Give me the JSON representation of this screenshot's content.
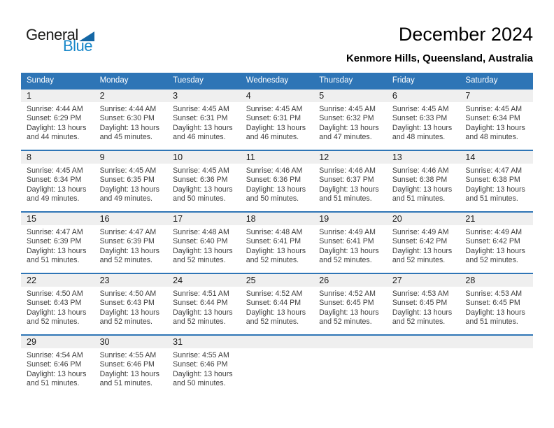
{
  "logo": {
    "part1": "General",
    "part2": "Blue",
    "triangle_color": "#1467a5",
    "blue_text_color": "#1787c9"
  },
  "header": {
    "title": "December 2024",
    "subtitle": "Kenmore Hills, Queensland, Australia"
  },
  "colors": {
    "weekday_header_bg": "#2e75b6",
    "week_divider": "#2e75b6",
    "day_number_strip_bg": "#efefef",
    "detail_text": "#3d3d3d"
  },
  "weekday_headers": [
    "Sunday",
    "Monday",
    "Tuesday",
    "Wednesday",
    "Thursday",
    "Friday",
    "Saturday"
  ],
  "weeks": [
    [
      {
        "day": "1",
        "sunrise": "Sunrise: 4:44 AM",
        "sunset": "Sunset: 6:29 PM",
        "daylight1": "Daylight: 13 hours",
        "daylight2": "and 44 minutes."
      },
      {
        "day": "2",
        "sunrise": "Sunrise: 4:44 AM",
        "sunset": "Sunset: 6:30 PM",
        "daylight1": "Daylight: 13 hours",
        "daylight2": "and 45 minutes."
      },
      {
        "day": "3",
        "sunrise": "Sunrise: 4:45 AM",
        "sunset": "Sunset: 6:31 PM",
        "daylight1": "Daylight: 13 hours",
        "daylight2": "and 46 minutes."
      },
      {
        "day": "4",
        "sunrise": "Sunrise: 4:45 AM",
        "sunset": "Sunset: 6:31 PM",
        "daylight1": "Daylight: 13 hours",
        "daylight2": "and 46 minutes."
      },
      {
        "day": "5",
        "sunrise": "Sunrise: 4:45 AM",
        "sunset": "Sunset: 6:32 PM",
        "daylight1": "Daylight: 13 hours",
        "daylight2": "and 47 minutes."
      },
      {
        "day": "6",
        "sunrise": "Sunrise: 4:45 AM",
        "sunset": "Sunset: 6:33 PM",
        "daylight1": "Daylight: 13 hours",
        "daylight2": "and 48 minutes."
      },
      {
        "day": "7",
        "sunrise": "Sunrise: 4:45 AM",
        "sunset": "Sunset: 6:34 PM",
        "daylight1": "Daylight: 13 hours",
        "daylight2": "and 48 minutes."
      }
    ],
    [
      {
        "day": "8",
        "sunrise": "Sunrise: 4:45 AM",
        "sunset": "Sunset: 6:34 PM",
        "daylight1": "Daylight: 13 hours",
        "daylight2": "and 49 minutes."
      },
      {
        "day": "9",
        "sunrise": "Sunrise: 4:45 AM",
        "sunset": "Sunset: 6:35 PM",
        "daylight1": "Daylight: 13 hours",
        "daylight2": "and 49 minutes."
      },
      {
        "day": "10",
        "sunrise": "Sunrise: 4:45 AM",
        "sunset": "Sunset: 6:36 PM",
        "daylight1": "Daylight: 13 hours",
        "daylight2": "and 50 minutes."
      },
      {
        "day": "11",
        "sunrise": "Sunrise: 4:46 AM",
        "sunset": "Sunset: 6:36 PM",
        "daylight1": "Daylight: 13 hours",
        "daylight2": "and 50 minutes."
      },
      {
        "day": "12",
        "sunrise": "Sunrise: 4:46 AM",
        "sunset": "Sunset: 6:37 PM",
        "daylight1": "Daylight: 13 hours",
        "daylight2": "and 51 minutes."
      },
      {
        "day": "13",
        "sunrise": "Sunrise: 4:46 AM",
        "sunset": "Sunset: 6:38 PM",
        "daylight1": "Daylight: 13 hours",
        "daylight2": "and 51 minutes."
      },
      {
        "day": "14",
        "sunrise": "Sunrise: 4:47 AM",
        "sunset": "Sunset: 6:38 PM",
        "daylight1": "Daylight: 13 hours",
        "daylight2": "and 51 minutes."
      }
    ],
    [
      {
        "day": "15",
        "sunrise": "Sunrise: 4:47 AM",
        "sunset": "Sunset: 6:39 PM",
        "daylight1": "Daylight: 13 hours",
        "daylight2": "and 51 minutes."
      },
      {
        "day": "16",
        "sunrise": "Sunrise: 4:47 AM",
        "sunset": "Sunset: 6:39 PM",
        "daylight1": "Daylight: 13 hours",
        "daylight2": "and 52 minutes."
      },
      {
        "day": "17",
        "sunrise": "Sunrise: 4:48 AM",
        "sunset": "Sunset: 6:40 PM",
        "daylight1": "Daylight: 13 hours",
        "daylight2": "and 52 minutes."
      },
      {
        "day": "18",
        "sunrise": "Sunrise: 4:48 AM",
        "sunset": "Sunset: 6:41 PM",
        "daylight1": "Daylight: 13 hours",
        "daylight2": "and 52 minutes."
      },
      {
        "day": "19",
        "sunrise": "Sunrise: 4:49 AM",
        "sunset": "Sunset: 6:41 PM",
        "daylight1": "Daylight: 13 hours",
        "daylight2": "and 52 minutes."
      },
      {
        "day": "20",
        "sunrise": "Sunrise: 4:49 AM",
        "sunset": "Sunset: 6:42 PM",
        "daylight1": "Daylight: 13 hours",
        "daylight2": "and 52 minutes."
      },
      {
        "day": "21",
        "sunrise": "Sunrise: 4:49 AM",
        "sunset": "Sunset: 6:42 PM",
        "daylight1": "Daylight: 13 hours",
        "daylight2": "and 52 minutes."
      }
    ],
    [
      {
        "day": "22",
        "sunrise": "Sunrise: 4:50 AM",
        "sunset": "Sunset: 6:43 PM",
        "daylight1": "Daylight: 13 hours",
        "daylight2": "and 52 minutes."
      },
      {
        "day": "23",
        "sunrise": "Sunrise: 4:50 AM",
        "sunset": "Sunset: 6:43 PM",
        "daylight1": "Daylight: 13 hours",
        "daylight2": "and 52 minutes."
      },
      {
        "day": "24",
        "sunrise": "Sunrise: 4:51 AM",
        "sunset": "Sunset: 6:44 PM",
        "daylight1": "Daylight: 13 hours",
        "daylight2": "and 52 minutes."
      },
      {
        "day": "25",
        "sunrise": "Sunrise: 4:52 AM",
        "sunset": "Sunset: 6:44 PM",
        "daylight1": "Daylight: 13 hours",
        "daylight2": "and 52 minutes."
      },
      {
        "day": "26",
        "sunrise": "Sunrise: 4:52 AM",
        "sunset": "Sunset: 6:45 PM",
        "daylight1": "Daylight: 13 hours",
        "daylight2": "and 52 minutes."
      },
      {
        "day": "27",
        "sunrise": "Sunrise: 4:53 AM",
        "sunset": "Sunset: 6:45 PM",
        "daylight1": "Daylight: 13 hours",
        "daylight2": "and 52 minutes."
      },
      {
        "day": "28",
        "sunrise": "Sunrise: 4:53 AM",
        "sunset": "Sunset: 6:45 PM",
        "daylight1": "Daylight: 13 hours",
        "daylight2": "and 51 minutes."
      }
    ],
    [
      {
        "day": "29",
        "sunrise": "Sunrise: 4:54 AM",
        "sunset": "Sunset: 6:46 PM",
        "daylight1": "Daylight: 13 hours",
        "daylight2": "and 51 minutes."
      },
      {
        "day": "30",
        "sunrise": "Sunrise: 4:55 AM",
        "sunset": "Sunset: 6:46 PM",
        "daylight1": "Daylight: 13 hours",
        "daylight2": "and 51 minutes."
      },
      {
        "day": "31",
        "sunrise": "Sunrise: 4:55 AM",
        "sunset": "Sunset: 6:46 PM",
        "daylight1": "Daylight: 13 hours",
        "daylight2": "and 50 minutes."
      },
      null,
      null,
      null,
      null
    ]
  ]
}
